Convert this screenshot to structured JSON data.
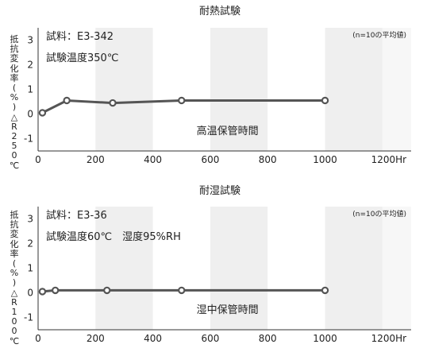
{
  "chart_data": [
    {
      "type": "line",
      "title": "耐熱試験",
      "sample": "試料：E3-342",
      "note": "(n=10の平均値)",
      "condition": "試験温度350℃",
      "annotation": "高温保管時間",
      "ylabel": "抵抗変化率(%)△R250℃",
      "xticks": [
        "0",
        "200",
        "400",
        "600",
        "800",
        "1000",
        "1200Hr"
      ],
      "yticks": [
        "3",
        "2",
        "1",
        "0",
        "-1"
      ],
      "xlim": [
        0,
        1300
      ],
      "ylim": [
        -1.5,
        3.5
      ],
      "series": [
        {
          "x": [
            15,
            100,
            260,
            500,
            1000
          ],
          "y": [
            0.05,
            0.55,
            0.45,
            0.55,
            0.55
          ]
        }
      ],
      "line_color": "#555555"
    },
    {
      "type": "line",
      "title": "耐湿試験",
      "sample": "試料：E3-36",
      "note": "(n=10の平均値)",
      "condition": "試験温度60℃　湿度95%RH",
      "annotation": "湿中保管時間",
      "ylabel": "抵抗変化率(%)△R100℃",
      "xticks": [
        "0",
        "200",
        "400",
        "600",
        "800",
        "1000",
        "1200Hr"
      ],
      "yticks": [
        "3",
        "2",
        "1",
        "0",
        "-1"
      ],
      "xlim": [
        0,
        1300
      ],
      "ylim": [
        -1.5,
        3.5
      ],
      "series": [
        {
          "x": [
            15,
            60,
            240,
            500,
            1000
          ],
          "y": [
            0.05,
            0.1,
            0.1,
            0.1,
            0.1
          ]
        }
      ],
      "line_color": "#555555"
    }
  ]
}
